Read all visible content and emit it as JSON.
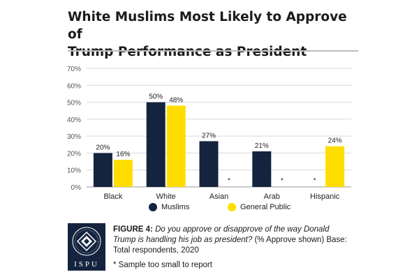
{
  "title_lines": [
    "White Muslims Most Likely to Approve of",
    "Trump Performance as President"
  ],
  "logo": {
    "text": "ISPU",
    "icon": "diamond-emblem-icon"
  },
  "caption": {
    "figure_label": "FIGURE 4:",
    "question": "Do you approve or disapprove of the way Donald Trump is handling his job as president?",
    "rest": "(% Approve shown) Base: Total respondents, 2020"
  },
  "footnote": "* Sample too small to report",
  "colors": {
    "muslims": "#14243f",
    "general_public": "#ffdd00",
    "grid": "#d9d9d9",
    "axis_text": "#555555"
  },
  "chart_data": {
    "type": "bar",
    "title": "White Muslims Most Likely to Approve of Trump Performance as President",
    "categories": [
      "Black",
      "White",
      "Asian",
      "Arab",
      "Hispanic"
    ],
    "series": [
      {
        "name": "Muslims",
        "values": [
          20,
          50,
          27,
          21,
          null
        ],
        "labels": [
          "20%",
          "50%",
          "27%",
          "21%",
          "*"
        ]
      },
      {
        "name": "General Public",
        "values": [
          16,
          48,
          null,
          null,
          24
        ],
        "labels": [
          "16%",
          "48%",
          "*",
          "*",
          "24%"
        ]
      }
    ],
    "ylim": [
      0,
      70
    ],
    "yticks": [
      0,
      10,
      20,
      30,
      40,
      50,
      60,
      70
    ],
    "ytick_labels": [
      "0%",
      "10%",
      "20%",
      "30%",
      "40%",
      "50%",
      "60%",
      "70%"
    ],
    "grid": true,
    "legend_position": "bottom",
    "xlabel": "",
    "ylabel": ""
  }
}
